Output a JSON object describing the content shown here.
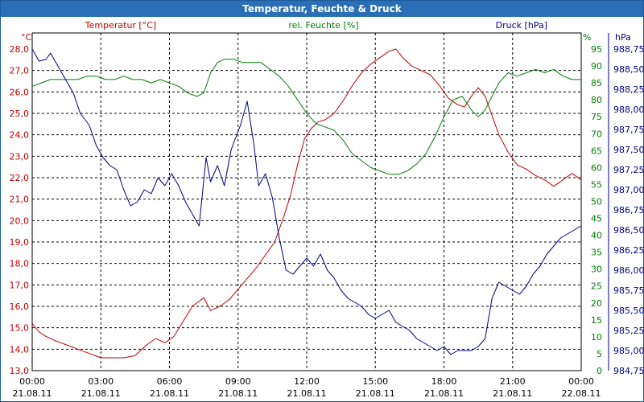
{
  "chart_data": {
    "type": "line",
    "title": "Temperatur, Feuchte & Druck",
    "x_ticks": [
      {
        "time": "00:00",
        "date": "21.08.11",
        "hour": 0
      },
      {
        "time": "03:00",
        "date": "21.08.11",
        "hour": 3
      },
      {
        "time": "06:00",
        "date": "21.08.11",
        "hour": 6
      },
      {
        "time": "09:00",
        "date": "21.08.11",
        "hour": 9
      },
      {
        "time": "12:00",
        "date": "21.08.11",
        "hour": 12
      },
      {
        "time": "15:00",
        "date": "21.08.11",
        "hour": 15
      },
      {
        "time": "18:00",
        "date": "21.08.11",
        "hour": 18
      },
      {
        "time": "21:00",
        "date": "21.08.11",
        "hour": 21
      },
      {
        "time": "00:00",
        "date": "22.08.11",
        "hour": 24
      }
    ],
    "xlim": [
      0,
      24
    ],
    "axes": {
      "temperature": {
        "label": "Temperatur [°C]",
        "unit": "°C",
        "color": "#c00000",
        "ylim": [
          13.0,
          28.0
        ],
        "ticks": [
          "13,0",
          "14,0",
          "15,0",
          "16,0",
          "17,0",
          "18,0",
          "19,0",
          "20,0",
          "21,0",
          "22,0",
          "23,0",
          "24,0",
          "25,0",
          "26,0",
          "27,0",
          "28,0"
        ]
      },
      "humidity": {
        "label": "rel. Feuchte [%]",
        "unit": "%",
        "color": "#008000",
        "ylim": [
          0,
          95
        ],
        "ticks": [
          "0",
          "5",
          "10",
          "15",
          "20",
          "25",
          "30",
          "35",
          "40",
          "45",
          "50",
          "55",
          "60",
          "65",
          "70",
          "75",
          "80",
          "85",
          "90",
          "95"
        ]
      },
      "pressure": {
        "label": "Druck [hPa]",
        "unit": "hPa",
        "color": "#000080",
        "ylim": [
          984.75,
          988.75
        ],
        "ticks": [
          "984,75",
          "985,00",
          "985,25",
          "985,50",
          "985,75",
          "986,00",
          "986,25",
          "986,50",
          "986,75",
          "987,00",
          "987,25",
          "987,50",
          "987,75",
          "988,00",
          "988,25",
          "988,50",
          "988,75"
        ]
      }
    },
    "series": [
      {
        "name": "Temperatur",
        "axis": "temperature",
        "color": "#c00000",
        "points": [
          [
            0.0,
            15.2
          ],
          [
            0.3,
            14.8
          ],
          [
            0.6,
            14.6
          ],
          [
            1.0,
            14.4
          ],
          [
            1.5,
            14.2
          ],
          [
            2.0,
            14.0
          ],
          [
            2.5,
            13.8
          ],
          [
            3.0,
            13.6
          ],
          [
            3.5,
            13.6
          ],
          [
            4.0,
            13.6
          ],
          [
            4.5,
            13.7
          ],
          [
            5.0,
            14.2
          ],
          [
            5.4,
            14.5
          ],
          [
            5.8,
            14.3
          ],
          [
            6.2,
            14.6
          ],
          [
            6.6,
            15.3
          ],
          [
            7.0,
            16.0
          ],
          [
            7.5,
            16.4
          ],
          [
            7.8,
            15.8
          ],
          [
            8.2,
            16.0
          ],
          [
            8.6,
            16.3
          ],
          [
            9.0,
            16.8
          ],
          [
            9.4,
            17.3
          ],
          [
            9.8,
            17.8
          ],
          [
            10.2,
            18.4
          ],
          [
            10.6,
            19.0
          ],
          [
            11.0,
            20.2
          ],
          [
            11.3,
            21.2
          ],
          [
            11.6,
            22.6
          ],
          [
            11.9,
            23.8
          ],
          [
            12.2,
            24.3
          ],
          [
            12.5,
            24.6
          ],
          [
            12.8,
            24.7
          ],
          [
            13.2,
            25.0
          ],
          [
            13.6,
            25.6
          ],
          [
            14.0,
            26.3
          ],
          [
            14.4,
            26.9
          ],
          [
            14.8,
            27.3
          ],
          [
            15.2,
            27.6
          ],
          [
            15.6,
            27.9
          ],
          [
            15.9,
            28.0
          ],
          [
            16.2,
            27.6
          ],
          [
            16.6,
            27.2
          ],
          [
            17.0,
            27.0
          ],
          [
            17.4,
            26.8
          ],
          [
            17.8,
            26.3
          ],
          [
            18.2,
            25.7
          ],
          [
            18.6,
            25.4
          ],
          [
            18.9,
            25.3
          ],
          [
            19.2,
            25.8
          ],
          [
            19.5,
            26.2
          ],
          [
            19.8,
            25.8
          ],
          [
            20.1,
            24.9
          ],
          [
            20.4,
            24.0
          ],
          [
            20.8,
            23.2
          ],
          [
            21.2,
            22.6
          ],
          [
            21.6,
            22.4
          ],
          [
            22.0,
            22.1
          ],
          [
            22.4,
            21.9
          ],
          [
            22.8,
            21.6
          ],
          [
            23.2,
            21.9
          ],
          [
            23.6,
            22.2
          ],
          [
            24.0,
            21.9
          ]
        ]
      },
      {
        "name": "rel. Feuchte",
        "axis": "humidity",
        "color": "#008000",
        "points": [
          [
            0.0,
            84
          ],
          [
            0.4,
            85
          ],
          [
            0.8,
            86
          ],
          [
            1.2,
            86
          ],
          [
            1.6,
            86
          ],
          [
            2.0,
            86
          ],
          [
            2.4,
            87
          ],
          [
            2.8,
            87
          ],
          [
            3.2,
            86
          ],
          [
            3.6,
            86
          ],
          [
            4.0,
            87
          ],
          [
            4.4,
            86
          ],
          [
            4.8,
            86
          ],
          [
            5.2,
            85
          ],
          [
            5.6,
            86
          ],
          [
            6.0,
            85
          ],
          [
            6.4,
            84
          ],
          [
            6.8,
            82
          ],
          [
            7.2,
            81
          ],
          [
            7.5,
            82
          ],
          [
            7.8,
            88
          ],
          [
            8.1,
            91
          ],
          [
            8.4,
            92
          ],
          [
            8.8,
            92
          ],
          [
            9.2,
            91
          ],
          [
            9.6,
            91
          ],
          [
            10.0,
            91
          ],
          [
            10.4,
            89
          ],
          [
            10.8,
            87
          ],
          [
            11.2,
            84
          ],
          [
            11.6,
            80
          ],
          [
            12.0,
            76
          ],
          [
            12.4,
            73
          ],
          [
            12.8,
            72
          ],
          [
            13.2,
            71
          ],
          [
            13.6,
            68
          ],
          [
            14.0,
            64
          ],
          [
            14.4,
            62
          ],
          [
            14.8,
            60
          ],
          [
            15.2,
            59
          ],
          [
            15.6,
            58
          ],
          [
            16.0,
            58
          ],
          [
            16.4,
            59
          ],
          [
            16.8,
            61
          ],
          [
            17.2,
            64
          ],
          [
            17.6,
            69
          ],
          [
            18.0,
            75
          ],
          [
            18.4,
            80
          ],
          [
            18.8,
            81
          ],
          [
            19.2,
            77
          ],
          [
            19.5,
            75
          ],
          [
            19.8,
            77
          ],
          [
            20.1,
            81
          ],
          [
            20.4,
            85
          ],
          [
            20.8,
            88
          ],
          [
            21.2,
            87
          ],
          [
            21.6,
            88
          ],
          [
            22.0,
            89
          ],
          [
            22.4,
            88
          ],
          [
            22.8,
            89
          ],
          [
            23.2,
            87
          ],
          [
            23.6,
            86
          ],
          [
            24.0,
            86
          ]
        ]
      },
      {
        "name": "Druck",
        "axis": "pressure",
        "color": "#000080",
        "points": [
          [
            0.0,
            988.75
          ],
          [
            0.3,
            988.6
          ],
          [
            0.6,
            988.62
          ],
          [
            0.8,
            988.7
          ],
          [
            1.1,
            988.55
          ],
          [
            1.4,
            988.4
          ],
          [
            1.8,
            988.2
          ],
          [
            2.1,
            987.95
          ],
          [
            2.5,
            987.8
          ],
          [
            2.8,
            987.55
          ],
          [
            3.1,
            987.4
          ],
          [
            3.4,
            987.3
          ],
          [
            3.7,
            987.25
          ],
          [
            4.0,
            987.0
          ],
          [
            4.3,
            986.8
          ],
          [
            4.6,
            986.85
          ],
          [
            4.9,
            987.0
          ],
          [
            5.2,
            986.95
          ],
          [
            5.5,
            987.15
          ],
          [
            5.8,
            987.05
          ],
          [
            6.1,
            987.2
          ],
          [
            6.4,
            987.05
          ],
          [
            6.7,
            986.85
          ],
          [
            7.0,
            986.7
          ],
          [
            7.3,
            986.55
          ],
          [
            7.6,
            987.4
          ],
          [
            7.8,
            987.1
          ],
          [
            8.1,
            987.3
          ],
          [
            8.4,
            987.05
          ],
          [
            8.7,
            987.5
          ],
          [
            9.1,
            987.8
          ],
          [
            9.4,
            988.1
          ],
          [
            9.7,
            987.55
          ],
          [
            9.9,
            987.05
          ],
          [
            10.2,
            987.2
          ],
          [
            10.5,
            986.9
          ],
          [
            10.8,
            986.4
          ],
          [
            11.1,
            986.0
          ],
          [
            11.4,
            985.95
          ],
          [
            11.7,
            986.05
          ],
          [
            12.0,
            986.15
          ],
          [
            12.3,
            986.05
          ],
          [
            12.6,
            986.2
          ],
          [
            12.9,
            986.0
          ],
          [
            13.2,
            985.9
          ],
          [
            13.5,
            985.75
          ],
          [
            13.8,
            985.65
          ],
          [
            14.1,
            985.6
          ],
          [
            14.4,
            985.55
          ],
          [
            14.7,
            985.45
          ],
          [
            15.0,
            985.4
          ],
          [
            15.3,
            985.45
          ],
          [
            15.6,
            985.5
          ],
          [
            15.9,
            985.35
          ],
          [
            16.2,
            985.3
          ],
          [
            16.5,
            985.25
          ],
          [
            16.8,
            985.15
          ],
          [
            17.1,
            985.1
          ],
          [
            17.4,
            985.05
          ],
          [
            17.7,
            985.0
          ],
          [
            18.0,
            985.05
          ],
          [
            18.3,
            984.95
          ],
          [
            18.6,
            985.0
          ],
          [
            18.9,
            985.0
          ],
          [
            19.2,
            985.0
          ],
          [
            19.5,
            985.05
          ],
          [
            19.8,
            985.15
          ],
          [
            20.1,
            985.65
          ],
          [
            20.4,
            985.85
          ],
          [
            20.7,
            985.8
          ],
          [
            21.0,
            985.75
          ],
          [
            21.3,
            985.7
          ],
          [
            21.6,
            985.8
          ],
          [
            21.9,
            985.95
          ],
          [
            22.2,
            986.05
          ],
          [
            22.5,
            986.2
          ],
          [
            22.8,
            986.3
          ],
          [
            23.1,
            986.4
          ],
          [
            23.4,
            986.45
          ],
          [
            23.7,
            986.5
          ],
          [
            24.0,
            986.55
          ]
        ]
      }
    ]
  }
}
